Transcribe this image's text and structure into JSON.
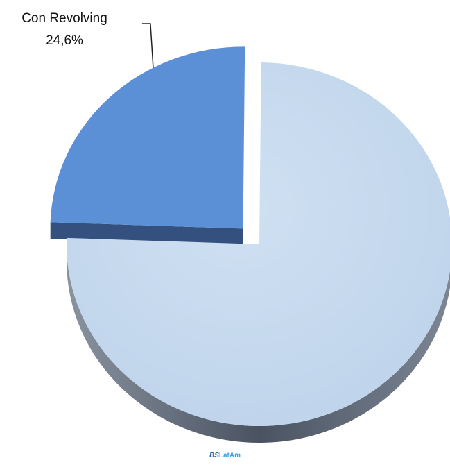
{
  "chart_data": {
    "type": "pie",
    "title": "",
    "style": "3d-exploded",
    "slices": [
      {
        "label": "Con Revolving",
        "value": 24.6,
        "value_label": "24,6%",
        "color": "#5b8fd6",
        "side_color": "#33507f",
        "exploded": true,
        "label_shown": true
      },
      {
        "label": "",
        "value": 75.4,
        "value_label": "",
        "color": "#c5d9ef",
        "side_color": "#4a5361",
        "exploded": false,
        "label_shown": false
      }
    ],
    "legend": "none"
  },
  "watermark": {
    "brand_bold": "BS",
    "brand_rest": "LatAm"
  }
}
